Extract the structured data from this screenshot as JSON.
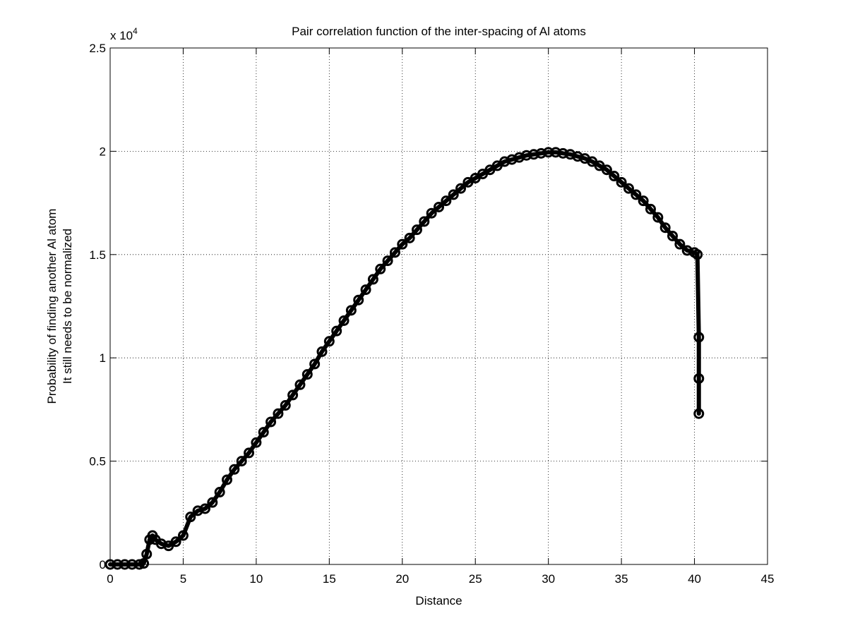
{
  "chart_data": {
    "type": "line",
    "title": "Pair correlation function of the inter-spacing of Al atoms",
    "xlabel": "Distance",
    "ylabel_lines": [
      "Probability of finding another Al atom",
      "It still needs to be normalized"
    ],
    "y_exponent_prefix": "x 10",
    "y_exponent_power": "4",
    "xlim": [
      0,
      45
    ],
    "ylim": [
      0,
      25000
    ],
    "grid": true,
    "x_ticks": [
      0,
      5,
      10,
      15,
      20,
      25,
      30,
      35,
      40,
      45
    ],
    "x_tick_labels": [
      "0",
      "5",
      "10",
      "15",
      "20",
      "25",
      "30",
      "35",
      "40",
      "45"
    ],
    "y_ticks": [
      0,
      5000,
      10000,
      15000,
      20000,
      25000
    ],
    "y_tick_labels": [
      "0",
      "0.5",
      "1",
      "1.5",
      "2",
      "2.5"
    ],
    "marker": "circle",
    "line_color": "#000000",
    "series": [
      {
        "x": [
          0,
          0.5,
          1.0,
          1.5,
          2.0,
          2.3,
          2.5,
          2.7,
          2.9,
          3.1,
          3.5,
          4.0,
          4.5,
          5.0,
          5.5,
          6.0,
          6.5,
          7.0,
          7.5,
          8.0,
          8.5,
          9.0,
          9.5,
          10.0,
          10.5,
          11.0,
          11.5,
          12.0,
          12.5,
          13.0,
          13.5,
          14.0,
          14.5,
          15.0,
          15.5,
          16.0,
          16.5,
          17.0,
          17.5,
          18.0,
          18.5,
          19.0,
          19.5,
          20.0,
          20.5,
          21.0,
          21.5,
          22.0,
          22.5,
          23.0,
          23.5,
          24.0,
          24.5,
          25.0,
          25.5,
          26.0,
          26.5,
          27.0,
          27.5,
          28.0,
          28.5,
          29.0,
          29.5,
          30.0,
          30.5,
          31.0,
          31.5,
          32.0,
          32.5,
          33.0,
          33.5,
          34.0,
          34.5,
          35.0,
          35.5,
          36.0,
          36.5,
          37.0,
          37.5,
          38.0,
          38.5,
          39.0,
          39.5,
          40.0,
          40.2,
          40.3,
          40.3,
          40.3
        ],
        "y": [
          0,
          0,
          0,
          0,
          0,
          50,
          500,
          1200,
          1400,
          1200,
          1000,
          900,
          1100,
          1400,
          2300,
          2600,
          2700,
          3000,
          3500,
          4100,
          4600,
          5000,
          5400,
          5900,
          6400,
          6900,
          7300,
          7700,
          8200,
          8700,
          9200,
          9700,
          10300,
          10800,
          11300,
          11800,
          12300,
          12800,
          13300,
          13800,
          14300,
          14700,
          15100,
          15500,
          15800,
          16200,
          16600,
          17000,
          17300,
          17600,
          17900,
          18200,
          18500,
          18700,
          18900,
          19100,
          19300,
          19500,
          19600,
          19700,
          19800,
          19850,
          19900,
          19950,
          19950,
          19900,
          19850,
          19750,
          19650,
          19500,
          19300,
          19100,
          18800,
          18500,
          18200,
          17900,
          17600,
          17200,
          16800,
          16300,
          15900,
          15500,
          15200,
          15100,
          15000,
          11000,
          9000,
          7300
        ]
      }
    ]
  }
}
